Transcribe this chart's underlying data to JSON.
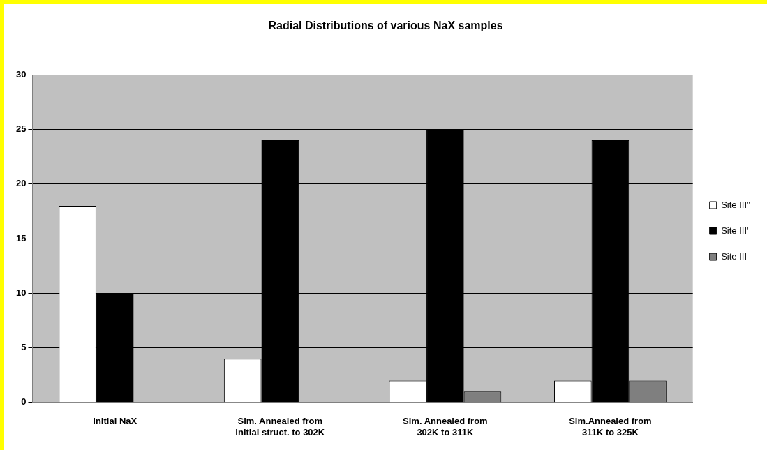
{
  "chart_data": {
    "type": "bar",
    "title": "Radial Distributions of various NaX samples",
    "categories": [
      "Initial NaX",
      "Sim. Annealed from initial struct. to 302K",
      "Sim. Annealed from 302K to 311K",
      "Sim.Annealed from 311K to 325K"
    ],
    "series": [
      {
        "name": "Site III''",
        "color": "#ffffff",
        "values": [
          18,
          4,
          2,
          2
        ]
      },
      {
        "name": "Site III'",
        "color": "#000000",
        "values": [
          10,
          24,
          25,
          24
        ]
      },
      {
        "name": "Site III",
        "color": "#7f7f7f",
        "values": [
          0,
          0,
          1,
          2
        ]
      }
    ],
    "ylim": [
      0,
      30
    ],
    "yticks": [
      0,
      5,
      10,
      15,
      20,
      25,
      30
    ],
    "grid": "y",
    "legend": "right"
  }
}
